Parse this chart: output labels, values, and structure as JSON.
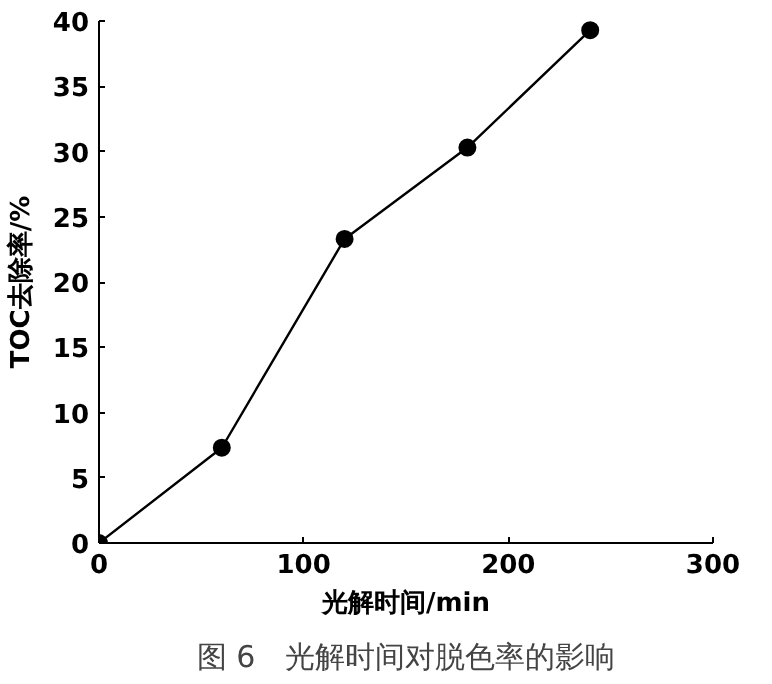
{
  "chart_data": {
    "type": "line",
    "xlabel": "光解时间/min",
    "ylabel": "TOC去除率/%",
    "annotations": [
      "图 6　光解时间对脱色率的影响"
    ],
    "x": [
      0,
      60,
      120,
      180,
      240
    ],
    "series": [
      {
        "color": "#000000",
        "values": [
          0,
          7.3,
          23.3,
          30.3,
          39.3
        ]
      }
    ],
    "xlim": [
      0,
      300
    ],
    "ylim": [
      0,
      40
    ],
    "xticks": [
      0,
      100,
      200,
      300
    ],
    "yticks": [
      0,
      5,
      10,
      15,
      20,
      25,
      30,
      35,
      40
    ],
    "grid": false,
    "marker": "circle",
    "line_style": "solid"
  }
}
